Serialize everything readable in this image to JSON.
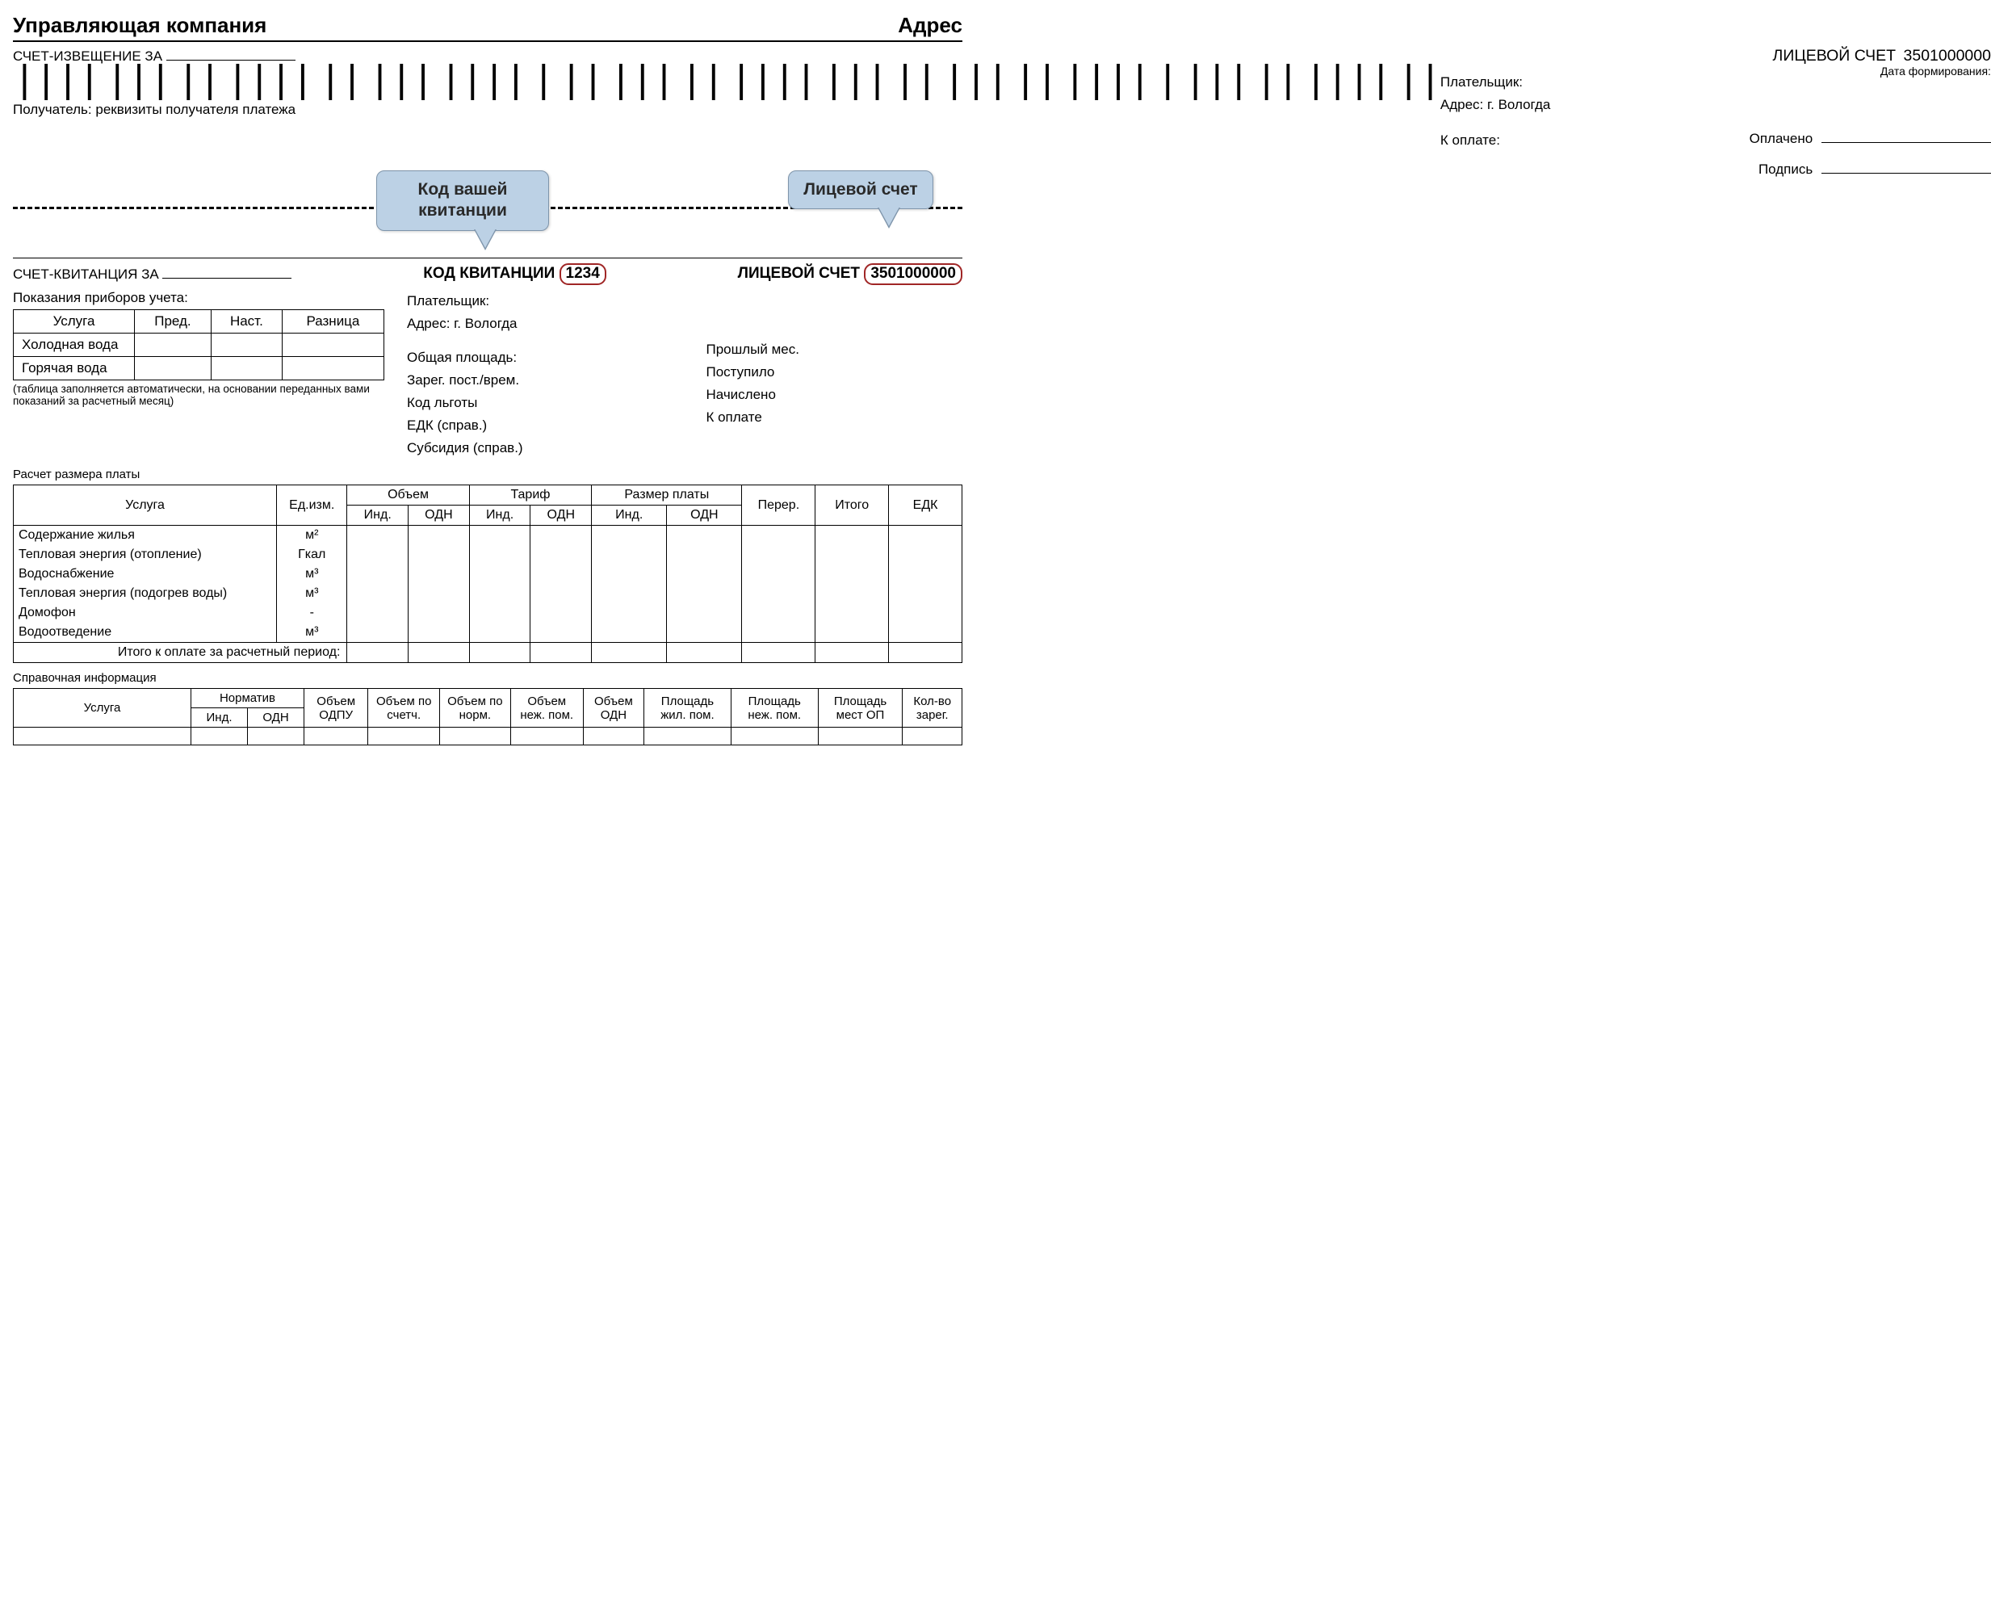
{
  "header": {
    "company": "Управляющая компания",
    "address_label": "Адрес",
    "notice_label": "СЧЕТ-ИЗВЕЩЕНИЕ ЗА",
    "account_label": "ЛИЦЕВОЙ СЧЕТ",
    "account_number": "3501000000",
    "date_label": "Дата формирования:",
    "receiver": "Получатель: реквизиты получателя платежа",
    "payer_label": "Плательщик:",
    "addr_label": "Адрес: г. Вологда",
    "to_pay": "К оплате:",
    "paid_label": "Оплачено",
    "sign_label": "Подпись"
  },
  "callouts": {
    "receipt_code": "Код вашей квитанции",
    "account": "Лицевой счет",
    "receipt_code_bg": "#bcd1e5",
    "border": "#7f95ab",
    "mark_border": "#a02626"
  },
  "receipt": {
    "title": "СЧЕТ-КВИТАНЦИЯ ЗА",
    "code_label": "КОД КВИТАНЦИИ",
    "code_value": "1234",
    "account_label": "ЛИЦЕВОЙ СЧЕТ",
    "account_value": "3501000000",
    "meters_label": "Показания приборов учета:",
    "meter_headers": [
      "Услуга",
      "Пред.",
      "Наст.",
      "Разница"
    ],
    "meter_rows": [
      "Холодная вода",
      "Горячая вода"
    ],
    "meter_note": "(таблица заполняется автоматически, на основании переданных вами показаний за расчетный месяц)",
    "payer_label": "Плательщик:",
    "addr_label": "Адрес: г. Вологда",
    "mid_left": [
      "Общая площадь:",
      "Зарег. пост./врем.",
      "Код льготы",
      "ЕДК (справ.)",
      "Субсидия (справ.)"
    ],
    "mid_right": [
      "Прошлый мес.",
      "Поступило",
      "Начислено",
      "К оплате"
    ]
  },
  "calc": {
    "title": "Расчет размера платы",
    "h1": "Услуга",
    "h2": "Ед.изм.",
    "g1": "Объем",
    "g2": "Тариф",
    "g3": "Размер платы",
    "s1": "Инд.",
    "s2": "ОДН",
    "h_per": "Перер.",
    "h_itogo": "Итого",
    "h_edk": "ЕДК",
    "rows": [
      {
        "svc": "Содержание жилья",
        "unit": "м²"
      },
      {
        "svc": "Тепловая энергия (отопление)",
        "unit": "Гкал"
      },
      {
        "svc": "Водоснабжение",
        "unit": "м³"
      },
      {
        "svc": "Тепловая энергия (подогрев воды)",
        "unit": "м³"
      },
      {
        "svc": "Домофон",
        "unit": "-"
      },
      {
        "svc": "Водоотведение",
        "unit": "м³"
      }
    ],
    "total": "Итого к оплате за расчетный период:"
  },
  "ref": {
    "title": "Справочная информация",
    "h_service": "Услуга",
    "g_norm": "Норматив",
    "s_ind": "Инд.",
    "s_odn": "ОДН",
    "cols": [
      "Объем ОДПУ",
      "Объем по счетч.",
      "Объем по норм.",
      "Объем неж. пом.",
      "Объем ОДН",
      "Площадь жил. пом.",
      "Площадь неж. пом.",
      "Площадь мест ОП",
      "Кол-во зарег."
    ]
  }
}
